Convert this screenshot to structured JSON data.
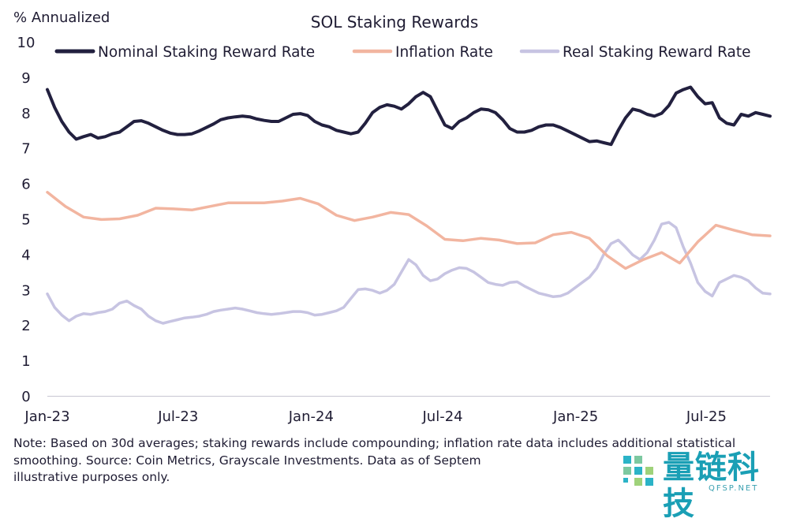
{
  "chart_data": {
    "type": "line",
    "title": "SOL Staking Rewards",
    "ylabel": "% Annualized",
    "xlabel": "",
    "ylim": [
      0,
      10
    ],
    "xlim": [
      0,
      1000
    ],
    "y_ticks": [
      0,
      1,
      2,
      3,
      4,
      5,
      6,
      7,
      8,
      9,
      10
    ],
    "x_ticks": [
      {
        "label": "Jan-23",
        "day": 0
      },
      {
        "label": "Jul-23",
        "day": 181
      },
      {
        "label": "Jan-24",
        "day": 365
      },
      {
        "label": "Jul-24",
        "day": 547
      },
      {
        "label": "Jan-25",
        "day": 731
      },
      {
        "label": "Jul-25",
        "day": 912
      }
    ],
    "x_unit": "days since Jan 1, 2023",
    "grid": false,
    "legend_position": "top",
    "series": [
      {
        "name": "Nominal Staking Reward Rate",
        "color": "#22203f",
        "x": [
          0,
          10,
          20,
          30,
          40,
          50,
          60,
          70,
          80,
          90,
          100,
          110,
          120,
          130,
          140,
          150,
          160,
          170,
          180,
          190,
          200,
          210,
          220,
          230,
          240,
          250,
          260,
          270,
          280,
          290,
          300,
          310,
          320,
          330,
          340,
          350,
          360,
          370,
          380,
          390,
          400,
          410,
          420,
          430,
          440,
          450,
          460,
          470,
          480,
          490,
          500,
          510,
          520,
          530,
          540,
          550,
          560,
          570,
          580,
          590,
          600,
          610,
          620,
          630,
          640,
          650,
          660,
          670,
          680,
          690,
          700,
          710,
          720,
          730,
          740,
          750,
          760,
          770,
          780,
          790,
          800,
          810,
          820,
          830,
          840,
          850,
          860,
          870,
          880,
          890,
          900,
          910,
          920,
          930,
          940,
          950,
          960,
          970,
          980,
          990,
          1000
        ],
        "values": [
          8.65,
          8.15,
          7.75,
          7.45,
          7.25,
          7.32,
          7.38,
          7.28,
          7.32,
          7.4,
          7.45,
          7.6,
          7.75,
          7.77,
          7.7,
          7.6,
          7.5,
          7.42,
          7.38,
          7.38,
          7.4,
          7.48,
          7.58,
          7.68,
          7.8,
          7.85,
          7.88,
          7.9,
          7.88,
          7.82,
          7.78,
          7.75,
          7.75,
          7.85,
          7.95,
          7.97,
          7.92,
          7.75,
          7.65,
          7.6,
          7.5,
          7.45,
          7.4,
          7.45,
          7.7,
          8.0,
          8.15,
          8.22,
          8.18,
          8.1,
          8.25,
          8.45,
          8.57,
          8.45,
          8.05,
          7.65,
          7.55,
          7.75,
          7.85,
          8.0,
          8.1,
          8.08,
          8.0,
          7.8,
          7.55,
          7.45,
          7.45,
          7.5,
          7.6,
          7.65,
          7.65,
          7.58,
          7.48,
          7.38,
          7.28,
          7.18,
          7.2,
          7.15,
          7.1,
          7.5,
          7.85,
          8.1,
          8.05,
          7.95,
          7.9,
          7.98,
          8.2,
          8.55,
          8.65,
          8.72,
          8.45,
          8.25,
          8.28,
          7.85,
          7.7,
          7.65,
          7.95,
          7.9,
          8.0,
          7.95,
          7.9
        ]
      },
      {
        "name": "Inflation Rate",
        "color": "#f2b5a0",
        "x": [
          0,
          25,
          50,
          75,
          100,
          125,
          150,
          175,
          200,
          225,
          250,
          275,
          300,
          325,
          350,
          375,
          400,
          425,
          450,
          475,
          500,
          525,
          550,
          575,
          600,
          625,
          650,
          675,
          700,
          725,
          750,
          775,
          800,
          825,
          850,
          875,
          900,
          925,
          950,
          975,
          1000
        ],
        "values": [
          5.75,
          5.35,
          5.05,
          4.98,
          5.0,
          5.1,
          5.3,
          5.28,
          5.25,
          5.35,
          5.45,
          5.45,
          5.45,
          5.5,
          5.58,
          5.42,
          5.1,
          4.95,
          5.05,
          5.18,
          5.12,
          4.8,
          4.42,
          4.38,
          4.45,
          4.4,
          4.3,
          4.32,
          4.55,
          4.62,
          4.45,
          3.95,
          3.6,
          3.85,
          4.05,
          3.75,
          4.35,
          4.82,
          4.68,
          4.55,
          4.52
        ]
      },
      {
        "name": "Real Staking Reward Rate",
        "color": "#c7c4e2",
        "x": [
          0,
          10,
          20,
          30,
          40,
          50,
          60,
          70,
          80,
          90,
          100,
          110,
          120,
          130,
          140,
          150,
          160,
          170,
          180,
          190,
          200,
          210,
          220,
          230,
          240,
          250,
          260,
          270,
          280,
          290,
          300,
          310,
          320,
          330,
          340,
          350,
          360,
          370,
          380,
          390,
          400,
          410,
          420,
          430,
          440,
          450,
          460,
          470,
          480,
          490,
          500,
          510,
          520,
          530,
          540,
          550,
          560,
          570,
          580,
          590,
          600,
          610,
          620,
          630,
          640,
          650,
          660,
          670,
          680,
          690,
          700,
          710,
          720,
          730,
          740,
          750,
          760,
          770,
          780,
          790,
          800,
          810,
          820,
          830,
          840,
          850,
          860,
          870,
          880,
          890,
          900,
          910,
          920,
          930,
          940,
          950,
          960,
          970,
          980,
          990,
          1000
        ],
        "values": [
          2.88,
          2.5,
          2.28,
          2.12,
          2.25,
          2.32,
          2.3,
          2.35,
          2.38,
          2.45,
          2.62,
          2.68,
          2.55,
          2.45,
          2.25,
          2.12,
          2.05,
          2.1,
          2.15,
          2.2,
          2.22,
          2.25,
          2.3,
          2.38,
          2.42,
          2.45,
          2.48,
          2.45,
          2.4,
          2.35,
          2.32,
          2.3,
          2.32,
          2.35,
          2.38,
          2.38,
          2.35,
          2.28,
          2.3,
          2.35,
          2.4,
          2.5,
          2.75,
          3.0,
          3.02,
          2.98,
          2.9,
          2.98,
          3.15,
          3.5,
          3.85,
          3.7,
          3.4,
          3.25,
          3.3,
          3.45,
          3.55,
          3.62,
          3.6,
          3.5,
          3.35,
          3.2,
          3.15,
          3.12,
          3.2,
          3.22,
          3.1,
          3.0,
          2.9,
          2.85,
          2.8,
          2.82,
          2.9,
          3.05,
          3.2,
          3.35,
          3.6,
          4.0,
          4.3,
          4.4,
          4.2,
          3.98,
          3.85,
          4.05,
          4.4,
          4.85,
          4.9,
          4.75,
          4.2,
          3.75,
          3.2,
          2.95,
          2.82,
          3.2,
          3.3,
          3.4,
          3.35,
          3.25,
          3.05,
          2.9,
          2.88
        ]
      }
    ]
  },
  "note": "Note: Based on 30d averages; staking rewards include compounding; inflation rate data includes additional statistical smoothing. Source: Coin Metrics, Grayscale Investments. Data as of Septem",
  "note_tail": "illustrative purposes only.",
  "watermark": {
    "cn": "量链科技",
    "en": "QFSP.NET"
  }
}
